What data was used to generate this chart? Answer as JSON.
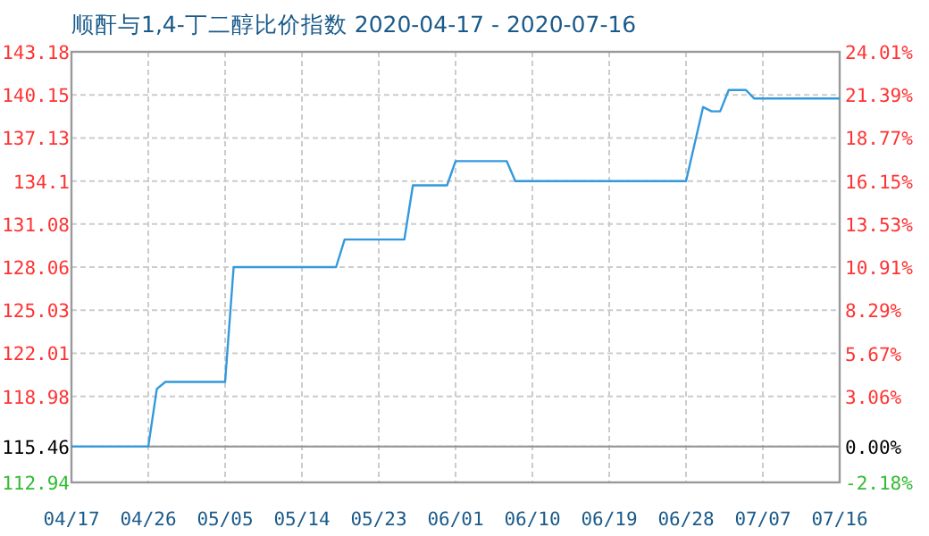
{
  "chart_data": {
    "type": "line",
    "title": "顺酐与1,4-丁二醇比价指数 2020-04-17 - 2020-07-16",
    "x": [
      "2020-04-17",
      "2020-04-26",
      "2020-04-27",
      "2020-04-28",
      "2020-05-05",
      "2020-05-06",
      "2020-05-18",
      "2020-05-19",
      "2020-05-26",
      "2020-05-27",
      "2020-05-31",
      "2020-06-01",
      "2020-06-07",
      "2020-06-08",
      "2020-06-28",
      "2020-06-30",
      "2020-07-01",
      "2020-07-02",
      "2020-07-03",
      "2020-07-05",
      "2020-07-06",
      "2020-07-16"
    ],
    "series": [
      {
        "color": "#3399dd",
        "values": [
          115.46,
          115.46,
          119.5,
          120.0,
          120.0,
          128.06,
          128.06,
          130.0,
          130.0,
          133.8,
          133.8,
          135.5,
          135.5,
          134.1,
          134.1,
          139.3,
          139.0,
          139.0,
          140.5,
          140.5,
          139.9,
          139.9
        ]
      }
    ],
    "xlim": [
      "2020-04-17",
      "2020-07-16"
    ],
    "xticks": [
      {
        "value": "2020-04-17",
        "label": "04/17"
      },
      {
        "value": "2020-04-26",
        "label": "04/26"
      },
      {
        "value": "2020-05-05",
        "label": "05/05"
      },
      {
        "value": "2020-05-14",
        "label": "05/14"
      },
      {
        "value": "2020-05-23",
        "label": "05/23"
      },
      {
        "value": "2020-06-01",
        "label": "06/01"
      },
      {
        "value": "2020-06-10",
        "label": "06/10"
      },
      {
        "value": "2020-06-19",
        "label": "06/19"
      },
      {
        "value": "2020-06-28",
        "label": "06/28"
      },
      {
        "value": "2020-07-07",
        "label": "07/07"
      },
      {
        "value": "2020-07-16",
        "label": "07/16"
      }
    ],
    "ylim": [
      112.94,
      143.18
    ],
    "yticks": [
      112.94,
      115.46,
      118.98,
      122.01,
      125.03,
      128.06,
      131.08,
      134.1,
      137.13,
      140.15,
      143.18
    ],
    "y2lim": [
      -2.18,
      24.01
    ],
    "y2ticks": [
      {
        "value": -2.18,
        "label": "-2.18%"
      },
      {
        "value": 0,
        "label": "0.00%"
      },
      {
        "value": 3.06,
        "label": "3.06%"
      },
      {
        "value": 5.67,
        "label": "5.67%"
      },
      {
        "value": 8.29,
        "label": "8.29%"
      },
      {
        "value": 10.91,
        "label": "10.91%"
      },
      {
        "value": 13.53,
        "label": "13.53%"
      },
      {
        "value": 16.15,
        "label": "16.15%"
      },
      {
        "value": 18.77,
        "label": "18.77%"
      },
      {
        "value": 21.39,
        "label": "21.39%"
      },
      {
        "value": 24.01,
        "label": "24.01%"
      }
    ],
    "ref_lines": [
      {
        "axis": "y2",
        "value": 0,
        "color": "#999999",
        "line_style": "solid"
      }
    ],
    "grid": true
  }
}
